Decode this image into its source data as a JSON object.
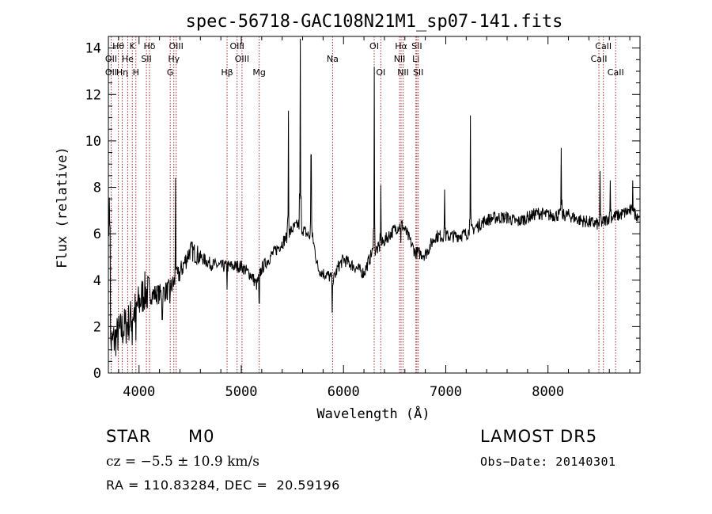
{
  "chart_data": {
    "type": "line",
    "title": "spec-56718-GAC108N21M1_sp07-141.fits",
    "xlabel": "Wavelength (Å)",
    "ylabel": "Flux (relative)",
    "xlim": [
      3700,
      8900
    ],
    "ylim": [
      0,
      14.5
    ],
    "x_ticks": [
      4000,
      5000,
      6000,
      7000,
      8000
    ],
    "y_ticks": [
      0,
      2,
      4,
      6,
      8,
      10,
      12,
      14
    ],
    "grid": false,
    "line_color": "#000000",
    "marker_color": "#a52a2a",
    "continuum": [
      [
        3720,
        1.2
      ],
      [
        3800,
        1.7
      ],
      [
        3900,
        2.2
      ],
      [
        4000,
        3.0
      ],
      [
        4050,
        3.5
      ],
      [
        4100,
        3.4
      ],
      [
        4200,
        3.4
      ],
      [
        4300,
        3.6
      ],
      [
        4400,
        4.3
      ],
      [
        4500,
        5.3
      ],
      [
        4600,
        5.0
      ],
      [
        4700,
        4.7
      ],
      [
        4800,
        4.6
      ],
      [
        4900,
        4.6
      ],
      [
        5000,
        4.6
      ],
      [
        5100,
        4.2
      ],
      [
        5150,
        3.8
      ],
      [
        5200,
        4.5
      ],
      [
        5300,
        5.1
      ],
      [
        5400,
        5.6
      ],
      [
        5500,
        6.2
      ],
      [
        5560,
        6.4
      ],
      [
        5640,
        6.0
      ],
      [
        5700,
        5.8
      ],
      [
        5750,
        4.5
      ],
      [
        5800,
        4.3
      ],
      [
        5850,
        4.2
      ],
      [
        5900,
        4.0
      ],
      [
        5950,
        4.6
      ],
      [
        6000,
        4.9
      ],
      [
        6100,
        4.6
      ],
      [
        6200,
        4.3
      ],
      [
        6280,
        5.2
      ],
      [
        6350,
        5.4
      ],
      [
        6400,
        5.7
      ],
      [
        6500,
        6.2
      ],
      [
        6570,
        6.4
      ],
      [
        6620,
        6.0
      ],
      [
        6700,
        5.2
      ],
      [
        6800,
        5.1
      ],
      [
        6900,
        5.9
      ],
      [
        7000,
        5.9
      ],
      [
        7100,
        5.9
      ],
      [
        7200,
        6.0
      ],
      [
        7300,
        6.3
      ],
      [
        7400,
        6.6
      ],
      [
        7500,
        6.7
      ],
      [
        7600,
        6.7
      ],
      [
        7700,
        6.5
      ],
      [
        7800,
        6.7
      ],
      [
        7900,
        6.9
      ],
      [
        8000,
        6.8
      ],
      [
        8100,
        6.8
      ],
      [
        8200,
        6.8
      ],
      [
        8300,
        6.6
      ],
      [
        8400,
        6.5
      ],
      [
        8500,
        6.4
      ],
      [
        8600,
        6.7
      ],
      [
        8700,
        6.8
      ],
      [
        8800,
        7.0
      ],
      [
        8880,
        6.8
      ]
    ],
    "emission_lines": [
      [
        4358,
        8.4
      ],
      [
        5460,
        11.3
      ],
      [
        5577,
        14.4
      ],
      [
        5683,
        9.4
      ],
      [
        6300,
        13.2
      ],
      [
        6364,
        8.1
      ],
      [
        6990,
        7.9
      ],
      [
        7240,
        11.1
      ],
      [
        8130,
        9.7
      ],
      [
        8510,
        8.7
      ],
      [
        8610,
        8.3
      ],
      [
        8830,
        8.3
      ]
    ],
    "absorption_lines": [
      [
        3933,
        1.2
      ],
      [
        3968,
        1.4
      ],
      [
        4227,
        2.3
      ],
      [
        4300,
        3.0
      ],
      [
        4861,
        3.6
      ],
      [
        5175,
        3.0
      ],
      [
        5890,
        2.6
      ],
      [
        6560,
        5.6
      ]
    ],
    "line_markers": [
      {
        "label": "Hθ",
        "wl": 3798,
        "row": 0
      },
      {
        "label": "K",
        "wl": 3934,
        "row": 0
      },
      {
        "label": "Hδ",
        "wl": 4102,
        "row": 0
      },
      {
        "label": "OIII",
        "wl": 4363,
        "row": 0
      },
      {
        "label": "OIII",
        "wl": 4959,
        "row": 0
      },
      {
        "label": "OI",
        "wl": 6300,
        "row": 0
      },
      {
        "label": "Hα",
        "wl": 6563,
        "row": 0
      },
      {
        "label": "SII",
        "wl": 6717,
        "row": 0
      },
      {
        "label": "CaII",
        "wl": 8542,
        "row": 0
      },
      {
        "label": "OII",
        "wl": 3727,
        "row": 1
      },
      {
        "label": "He",
        "wl": 3889,
        "row": 1
      },
      {
        "label": "SII",
        "wl": 4072,
        "row": 1
      },
      {
        "label": "Hγ",
        "wl": 4340,
        "row": 1
      },
      {
        "label": "OIII",
        "wl": 5007,
        "row": 1
      },
      {
        "label": "Na",
        "wl": 5893,
        "row": 1
      },
      {
        "label": "NII",
        "wl": 6548,
        "row": 1
      },
      {
        "label": "Li",
        "wl": 6708,
        "row": 1
      },
      {
        "label": "CaII",
        "wl": 8498,
        "row": 1
      },
      {
        "label": "OII",
        "wl": 3727,
        "row": 2
      },
      {
        "label": "Hη",
        "wl": 3835,
        "row": 2
      },
      {
        "label": "H",
        "wl": 3969,
        "row": 2
      },
      {
        "label": "G",
        "wl": 4305,
        "row": 2
      },
      {
        "label": "Hβ",
        "wl": 4861,
        "row": 2
      },
      {
        "label": "Mg",
        "wl": 5175,
        "row": 2
      },
      {
        "label": "OI",
        "wl": 6364,
        "row": 2
      },
      {
        "label": "NII",
        "wl": 6583,
        "row": 2
      },
      {
        "label": "SII",
        "wl": 6731,
        "row": 2
      },
      {
        "label": "CaII",
        "wl": 8662,
        "row": 2
      }
    ]
  },
  "info": {
    "object_class": "STAR",
    "subclass": "M0",
    "survey": "LAMOST DR5",
    "redshift": "cz = −5.5 ± 10.9 km/s",
    "obs_date": "Obs−Date: 20140301",
    "coordinates": "RA = 110.83284, DEC =  20.59196"
  }
}
